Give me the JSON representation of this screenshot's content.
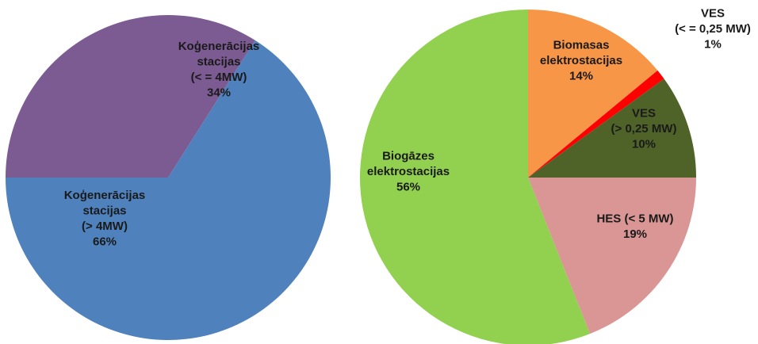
{
  "chart_data": [
    {
      "type": "pie",
      "slices": [
        {
          "label_lines": [
            "Koģenerācijas",
            "stacijas",
            "(< =  4MW)",
            "34%"
          ],
          "value": 34,
          "color": "#7B5B92"
        },
        {
          "label_lines": [
            "Koģenerācijas",
            "stacijas",
            "(> 4MW)",
            "66%"
          ],
          "value": 66,
          "color": "#4F81BD"
        }
      ]
    },
    {
      "type": "pie",
      "slices": [
        {
          "label_lines": [
            "Biomasas",
            "elektrostacijas",
            "14%"
          ],
          "value": 14,
          "color": "#F79646"
        },
        {
          "label_lines": [
            "VES",
            "(< = 0,25 MW)",
            "1%"
          ],
          "value": 1,
          "color": "#FF0000"
        },
        {
          "label_lines": [
            "VES",
            "(> 0,25 MW)",
            "10%"
          ],
          "value": 10,
          "color": "#4F6228"
        },
        {
          "label_lines": [
            "HES (< 5 MW)",
            "19%"
          ],
          "value": 19,
          "color": "#D99694"
        },
        {
          "label_lines": [
            "Biogāzes",
            "elektrostacijas",
            "56%"
          ],
          "value": 56,
          "color": "#92D050"
        }
      ]
    }
  ]
}
